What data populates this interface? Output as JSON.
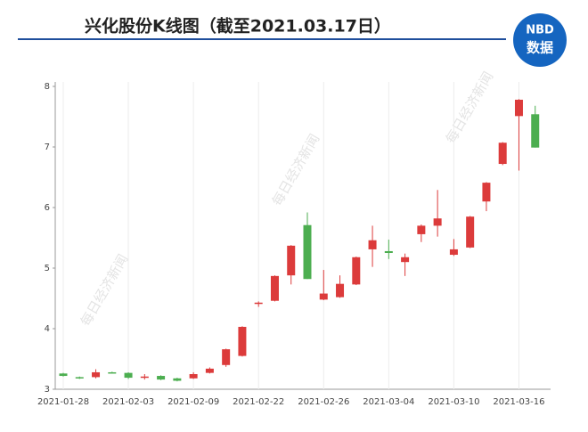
{
  "header": {
    "title": "兴化股份K线图（截至2021.03.17日）",
    "logo_top": "NBD",
    "logo_bottom": "数据"
  },
  "watermark": "每日经济新闻",
  "chart_data": {
    "type": "candlestick",
    "categories": [
      "2021-01-28",
      null,
      null,
      null,
      "2021-02-03",
      null,
      null,
      null,
      "2021-02-09",
      null,
      null,
      null,
      "2021-02-22",
      null,
      null,
      null,
      "2021-02-26",
      null,
      null,
      null,
      "2021-03-04",
      null,
      null,
      null,
      "2021-03-10",
      null,
      null,
      null,
      "2021-03-16",
      null
    ],
    "open": [
      3.26,
      3.2,
      3.2,
      3.28,
      3.27,
      3.19,
      3.22,
      3.18,
      3.18,
      3.27,
      3.4,
      3.55,
      4.42,
      4.46,
      4.88,
      5.71,
      4.48,
      4.52,
      4.73,
      5.31,
      5.28,
      5.1,
      5.56,
      5.7,
      5.22,
      5.34,
      6.1,
      6.72,
      7.51,
      7.54
    ],
    "high": [
      3.27,
      3.21,
      3.33,
      3.29,
      3.28,
      3.25,
      3.23,
      3.19,
      3.28,
      3.36,
      3.67,
      4.04,
      4.45,
      4.88,
      5.38,
      5.92,
      4.97,
      4.88,
      5.19,
      5.7,
      5.47,
      5.24,
      5.72,
      6.29,
      5.48,
      5.86,
      6.42,
      7.08,
      7.79,
      7.68
    ],
    "low": [
      3.21,
      3.17,
      3.18,
      3.26,
      3.17,
      3.16,
      3.15,
      3.13,
      3.17,
      3.26,
      3.37,
      3.54,
      4.36,
      4.45,
      4.73,
      4.82,
      4.47,
      4.51,
      4.72,
      5.02,
      5.15,
      4.87,
      5.43,
      5.52,
      5.2,
      5.33,
      5.94,
      6.7,
      6.61,
      6.99
    ],
    "close": [
      3.22,
      3.18,
      3.28,
      3.27,
      3.19,
      3.21,
      3.16,
      3.14,
      3.25,
      3.34,
      3.66,
      4.03,
      4.43,
      4.87,
      5.37,
      4.82,
      4.58,
      4.74,
      5.18,
      5.46,
      5.25,
      5.18,
      5.7,
      5.82,
      5.31,
      5.85,
      6.41,
      7.07,
      7.78,
      6.99
    ],
    "up_color": "#dc3b3b",
    "down_color": "#4cae50",
    "ylim": [
      3,
      8
    ],
    "yticks": [
      3,
      4,
      5,
      6,
      7,
      8
    ],
    "grid": "x"
  }
}
